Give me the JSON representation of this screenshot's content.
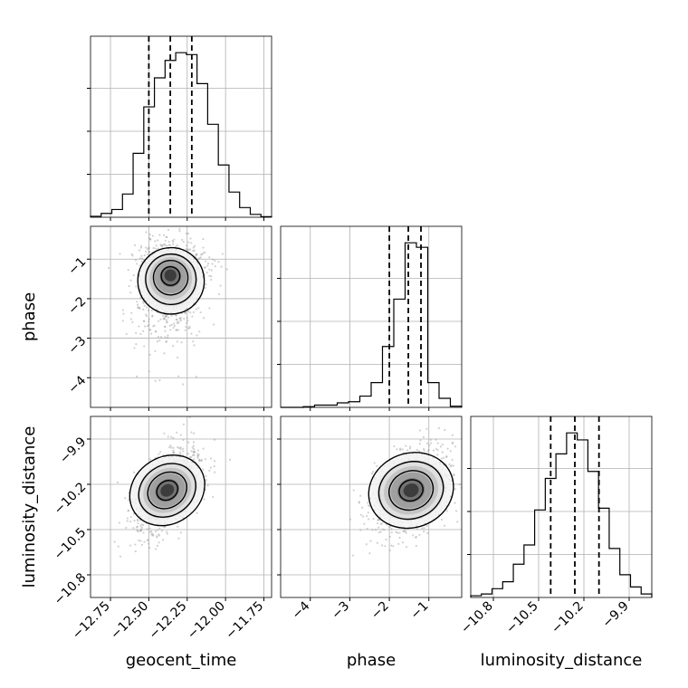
{
  "chart_data": {
    "type": "corner",
    "parameters": [
      {
        "name": "geocent_time",
        "label": "geocent_time",
        "range": [
          -12.88,
          -11.7
        ],
        "ticks": [
          -12.75,
          -12.5,
          -12.25,
          -12.0,
          -11.75
        ],
        "tick_labels": [
          "−12.75",
          "−12.50",
          "−12.25",
          "−12.00",
          "−11.75"
        ],
        "quantiles": [
          -12.5,
          -12.36,
          -12.22
        ]
      },
      {
        "name": "phase",
        "label": "phase",
        "range": [
          -4.75,
          -0.17
        ],
        "ticks": [
          -4,
          -3,
          -2,
          -1
        ],
        "tick_labels": [
          "−4",
          "−3",
          "−2",
          "−1"
        ],
        "quantiles": [
          -2.0,
          -1.52,
          -1.2
        ]
      },
      {
        "name": "luminosity_distance",
        "label": "luminosity_distance",
        "range": [
          -10.95,
          -9.75
        ],
        "ticks": [
          -10.8,
          -10.5,
          -10.2,
          -9.9
        ],
        "tick_labels": [
          "−10.8",
          "−10.5",
          "−10.2",
          "−9.9"
        ],
        "quantiles": [
          -10.42,
          -10.26,
          -10.1
        ]
      }
    ],
    "histograms": [
      {
        "parameter": "geocent_time",
        "edges_range": [
          -12.88,
          -11.7
        ],
        "counts": [
          0.5,
          2,
          4,
          12,
          33,
          57,
          72,
          81,
          85,
          84,
          69,
          48,
          27,
          13,
          5,
          1.5,
          0.3
        ]
      },
      {
        "parameter": "phase",
        "edges_range": [
          -4.75,
          -0.17
        ],
        "counts": [
          0,
          0,
          0.3,
          1,
          1,
          2,
          2.5,
          5,
          11,
          27,
          48,
          73,
          71,
          11,
          4,
          0.5
        ]
      },
      {
        "parameter": "luminosity_distance",
        "edges_range": [
          -10.95,
          -9.75
        ],
        "counts": [
          1,
          2,
          5,
          9,
          19,
          30,
          50,
          68,
          82,
          94,
          90,
          72,
          51,
          28,
          13,
          6,
          2
        ]
      }
    ],
    "pairs": [
      {
        "x": "geocent_time",
        "y": "phase",
        "center": [
          -12.36,
          -1.38
        ],
        "sd": [
          0.11,
          0.45
        ],
        "corr": 0.1,
        "skew_y": "negative"
      },
      {
        "x": "geocent_time",
        "y": "luminosity_distance",
        "center": [
          -12.38,
          -10.24
        ],
        "sd": [
          0.11,
          0.14
        ],
        "corr": 0.55
      },
      {
        "x": "phase",
        "y": "luminosity_distance",
        "center": [
          -1.45,
          -10.24
        ],
        "sd": [
          0.5,
          0.14
        ],
        "corr": 0.35
      }
    ],
    "grid": true
  }
}
